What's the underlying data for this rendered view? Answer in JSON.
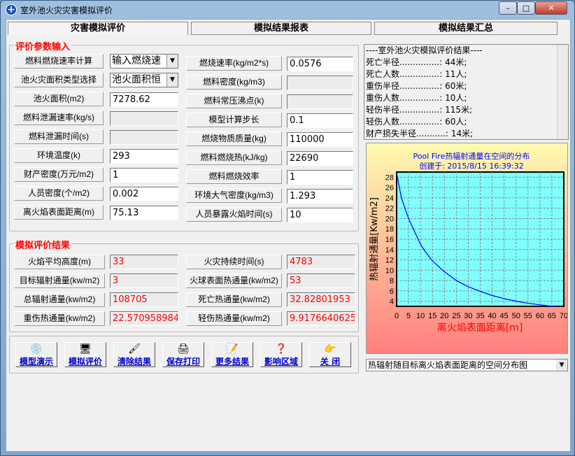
{
  "window": {
    "title": "室外池火灾灾害模拟评价",
    "minimize": "–",
    "maximize": "□",
    "close": "✕"
  },
  "tabs": [
    {
      "label": "灾害模拟评价",
      "active": true
    },
    {
      "label": "模拟结果报表"
    },
    {
      "label": "模拟结果汇总"
    }
  ],
  "inputs": {
    "title": "评价参数输入",
    "left": [
      {
        "label": "燃料燃烧速率计算",
        "value": "输入燃烧速",
        "type": "select"
      },
      {
        "label": "池火灾面积类型选择",
        "value": "池火面积恒",
        "type": "select"
      },
      {
        "label": "池火面积(m2)",
        "value": "7278.62"
      },
      {
        "label": "燃料泄漏速率(kg/s)",
        "value": "",
        "disabled": true
      },
      {
        "label": "燃料泄漏时间(s)",
        "value": "",
        "disabled": true
      },
      {
        "label": "环境温度(k)",
        "value": "293"
      },
      {
        "label": "财产密度(万元/m2)",
        "value": "1"
      },
      {
        "label": "人员密度(个/m2)",
        "value": "0.002"
      },
      {
        "label": "离火焰表面距离(m)",
        "value": "75.13"
      }
    ],
    "right": [
      {
        "label": "燃烧速率(kg/m2*s)",
        "value": "0.0576"
      },
      {
        "label": "燃料密度(kg/m3)",
        "value": "",
        "disabled": true
      },
      {
        "label": "燃料常压沸点(k)",
        "value": "",
        "disabled": true
      },
      {
        "label": "模型计算步长",
        "value": "0.1"
      },
      {
        "label": "燃烧物质质量(kg)",
        "value": "110000"
      },
      {
        "label": "燃料燃烧热(kJ/kg)",
        "value": "22690"
      },
      {
        "label": "燃料燃烧效率",
        "value": "1"
      },
      {
        "label": "环境大气密度(kg/m3)",
        "value": "1.293"
      },
      {
        "label": "人员暴露火焰时间(s)",
        "value": "10"
      }
    ]
  },
  "results": {
    "title": "模拟评价结果",
    "left": [
      {
        "label": "火焰平均高度(m)",
        "value": "33"
      },
      {
        "label": "目标辐射通量(kw/m2)",
        "value": "3"
      },
      {
        "label": "总辐射通量(kw/m2)",
        "value": "108705"
      },
      {
        "label": "重伤热通量(kw/m2)",
        "value": "22.570958984"
      }
    ],
    "right": [
      {
        "label": "火灾持续时间(s)",
        "value": "4783"
      },
      {
        "label": "火球表面热通量(kw/m2)",
        "value": "53"
      },
      {
        "label": "死亡热通量(kw/m2)",
        "value": "32.82801953"
      },
      {
        "label": "轻伤热通量(kw/m2)",
        "value": "9.9176640625"
      }
    ]
  },
  "buttons": [
    {
      "label": "模型演示",
      "icon": "disc-icon"
    },
    {
      "label": "模拟评价",
      "icon": "computer-icon"
    },
    {
      "label": "清除结果",
      "icon": "brush-icon"
    },
    {
      "label": "保存打印",
      "icon": "printer-icon"
    },
    {
      "label": "更多结果",
      "icon": "document-icon"
    },
    {
      "label": "影响区域",
      "icon": "question-icon"
    },
    {
      "label": "关  闭",
      "icon": "hand-icon"
    }
  ],
  "summary": {
    "lines": [
      "----室外池火灾模拟评价结果----",
      "死亡半径...............: 44米;",
      "死亡人数...............: 11人;",
      "重伤半径...............: 60米;",
      "重伤人数...............: 10人;",
      "轻伤半径...............: 115米;",
      "轻伤人数...............: 60人;",
      "财产损失半径...........: 14米;"
    ]
  },
  "chart_data": {
    "type": "line",
    "title": "Pool Fire热辐射通量在空间的分布",
    "subtitle": "创建于: 2015/8/15 16:39:32",
    "xlabel": "离火焰表面距离[m]",
    "ylabel": "热辐射通量[Kw/m2]",
    "xlim": [
      0,
      70
    ],
    "ylim": [
      3,
      29
    ],
    "xticks": [
      0,
      5,
      10,
      15,
      20,
      25,
      30,
      35,
      40,
      45,
      50,
      55,
      60,
      65,
      70
    ],
    "yticks": [
      4,
      6,
      8,
      10,
      12,
      14,
      16,
      18,
      20,
      22,
      24,
      26,
      28
    ],
    "grid": true,
    "colors": {
      "line": "#0000ff",
      "plot_bg": "#80ffff",
      "title": "#0000ff",
      "xlabel": "#ff0000"
    },
    "x": [
      0,
      2,
      5,
      8,
      10,
      12,
      15,
      20,
      25,
      30,
      35,
      40,
      45,
      50,
      55,
      60,
      65,
      67
    ],
    "y": [
      28.8,
      24,
      20,
      17,
      15,
      13.6,
      11.8,
      9.7,
      8,
      6.8,
      5.9,
      5.1,
      4.5,
      4.0,
      3.6,
      3.3,
      3.0,
      2.95
    ]
  },
  "chart_selector": {
    "value": "热辐射随目标离火焰表面距离的空间分布图"
  }
}
